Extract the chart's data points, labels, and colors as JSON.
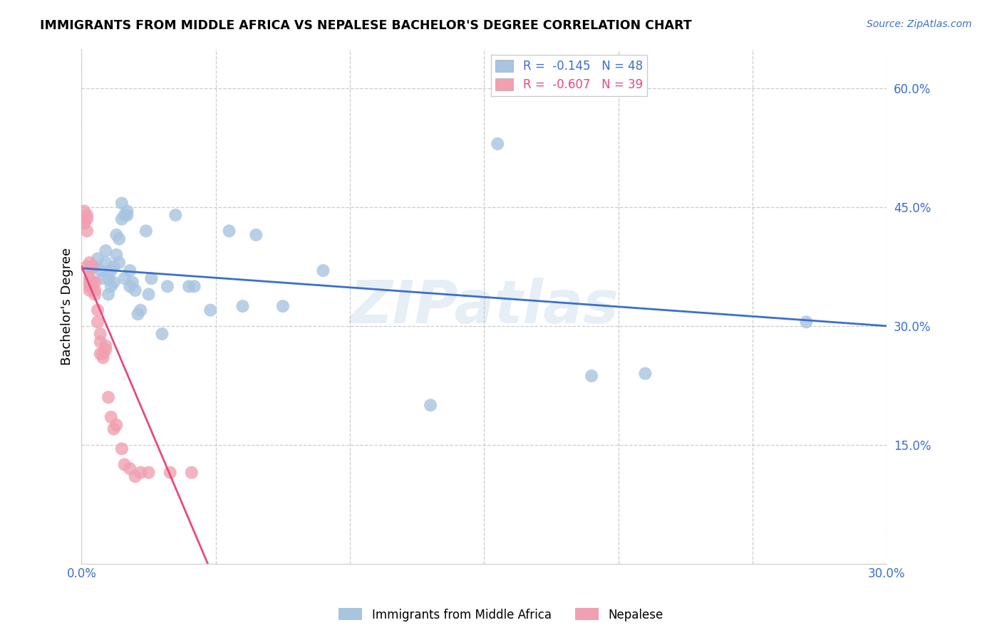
{
  "title": "IMMIGRANTS FROM MIDDLE AFRICA VS NEPALESE BACHELOR'S DEGREE CORRELATION CHART",
  "source": "Source: ZipAtlas.com",
  "ylabel": "Bachelor's Degree",
  "xlim": [
    0.0,
    0.3
  ],
  "ylim": [
    0.0,
    0.65
  ],
  "yticks_right": [
    0.15,
    0.3,
    0.45,
    0.6
  ],
  "ytick_labels_right": [
    "15.0%",
    "30.0%",
    "45.0%",
    "60.0%"
  ],
  "xticks": [
    0.0,
    0.05,
    0.1,
    0.15,
    0.2,
    0.25,
    0.3
  ],
  "xtick_labels": [
    "0.0%",
    "",
    "",
    "",
    "",
    "",
    "30.0%"
  ],
  "blue_R": -0.145,
  "blue_N": 48,
  "pink_R": -0.607,
  "pink_N": 39,
  "blue_color": "#a8c4e0",
  "pink_color": "#f0a0b0",
  "blue_line_color": "#3b6fcc",
  "pink_line_color": "#e84880",
  "legend_label_blue": "Immigrants from Middle Africa",
  "legend_label_pink": "Nepalese",
  "watermark": "ZIPatlas",
  "blue_scatter_x": [
    0.003,
    0.005,
    0.006,
    0.007,
    0.008,
    0.009,
    0.009,
    0.01,
    0.01,
    0.011,
    0.011,
    0.012,
    0.012,
    0.013,
    0.013,
    0.014,
    0.014,
    0.015,
    0.015,
    0.016,
    0.016,
    0.017,
    0.017,
    0.018,
    0.018,
    0.019,
    0.02,
    0.021,
    0.022,
    0.024,
    0.025,
    0.026,
    0.03,
    0.032,
    0.035,
    0.04,
    0.042,
    0.048,
    0.055,
    0.06,
    0.065,
    0.075,
    0.09,
    0.13,
    0.155,
    0.19,
    0.21,
    0.27
  ],
  "blue_scatter_y": [
    0.37,
    0.375,
    0.385,
    0.37,
    0.36,
    0.38,
    0.395,
    0.34,
    0.36,
    0.35,
    0.37,
    0.355,
    0.375,
    0.39,
    0.415,
    0.41,
    0.38,
    0.435,
    0.455,
    0.44,
    0.36,
    0.44,
    0.445,
    0.35,
    0.37,
    0.355,
    0.345,
    0.315,
    0.32,
    0.42,
    0.34,
    0.36,
    0.29,
    0.35,
    0.44,
    0.35,
    0.35,
    0.32,
    0.42,
    0.325,
    0.415,
    0.325,
    0.37,
    0.2,
    0.53,
    0.237,
    0.24,
    0.305
  ],
  "blue_trendline_x": [
    0.0,
    0.3
  ],
  "blue_trendline_y": [
    0.373,
    0.3
  ],
  "pink_scatter_x": [
    0.001,
    0.001,
    0.001,
    0.002,
    0.002,
    0.002,
    0.002,
    0.003,
    0.003,
    0.003,
    0.003,
    0.003,
    0.004,
    0.004,
    0.004,
    0.005,
    0.005,
    0.005,
    0.006,
    0.006,
    0.007,
    0.007,
    0.007,
    0.008,
    0.008,
    0.009,
    0.009,
    0.01,
    0.011,
    0.012,
    0.013,
    0.015,
    0.016,
    0.018,
    0.02,
    0.022,
    0.025,
    0.033,
    0.041
  ],
  "pink_scatter_y": [
    0.43,
    0.445,
    0.43,
    0.44,
    0.435,
    0.42,
    0.375,
    0.38,
    0.36,
    0.345,
    0.35,
    0.355,
    0.375,
    0.35,
    0.355,
    0.345,
    0.34,
    0.355,
    0.305,
    0.32,
    0.29,
    0.265,
    0.28,
    0.26,
    0.265,
    0.27,
    0.275,
    0.21,
    0.185,
    0.17,
    0.175,
    0.145,
    0.125,
    0.12,
    0.11,
    0.115,
    0.115,
    0.115,
    0.115
  ],
  "pink_trendline_x": [
    0.0,
    0.047
  ],
  "pink_trendline_y": [
    0.375,
    0.0
  ]
}
